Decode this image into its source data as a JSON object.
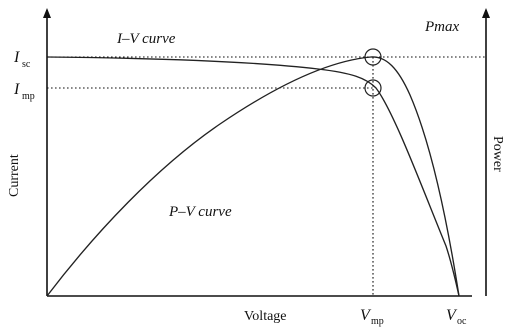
{
  "labels": {
    "iv_curve": "I–V curve",
    "pv_curve": "P–V curve",
    "pmax": "Pmax",
    "isc_main": "I",
    "isc_sub": "sc",
    "imp_main": "I",
    "imp_sub": "mp",
    "vmp_main": "V",
    "vmp_sub": "mp",
    "voc_main": "V",
    "voc_sub": "oc",
    "current": "Current",
    "voltage": "Voltage",
    "power": "Power"
  },
  "style": {
    "line_color": "#222222",
    "text_color": "#111111",
    "background": "#ffffff"
  }
}
